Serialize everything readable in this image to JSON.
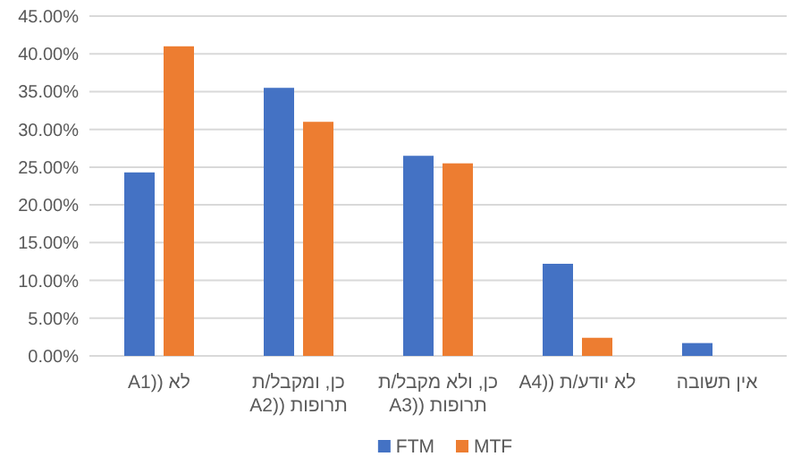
{
  "chart_data": {
    "type": "bar",
    "categories": [
      "לא ((A1",
      "כן, ומקבל/ת תרופות ((A2",
      "כן, ולא מקבל/ת תרופות ((A3",
      "לא יודע/ת ((A4",
      "אין תשובה"
    ],
    "series": [
      {
        "name": "FTM",
        "color": "#4472c4",
        "values": [
          24.3,
          35.5,
          26.5,
          12.2,
          1.7
        ]
      },
      {
        "name": "MTF",
        "color": "#ed7d31",
        "values": [
          41.0,
          31.0,
          25.5,
          2.4,
          0
        ]
      }
    ],
    "ylim": [
      0,
      45
    ],
    "yticks": [
      {
        "value": 0,
        "label": "0.00%"
      },
      {
        "value": 5,
        "label": "5.00%"
      },
      {
        "value": 10,
        "label": "10.00%"
      },
      {
        "value": 15,
        "label": "15.00%"
      },
      {
        "value": 20,
        "label": "20.00%"
      },
      {
        "value": 25,
        "label": "25.00%"
      },
      {
        "value": 30,
        "label": "30.00%"
      },
      {
        "value": 35,
        "label": "35.00%"
      },
      {
        "value": 40,
        "label": "40.00%"
      },
      {
        "value": 45,
        "label": "45.00%"
      }
    ],
    "grid": "y",
    "legend": "bottom"
  }
}
